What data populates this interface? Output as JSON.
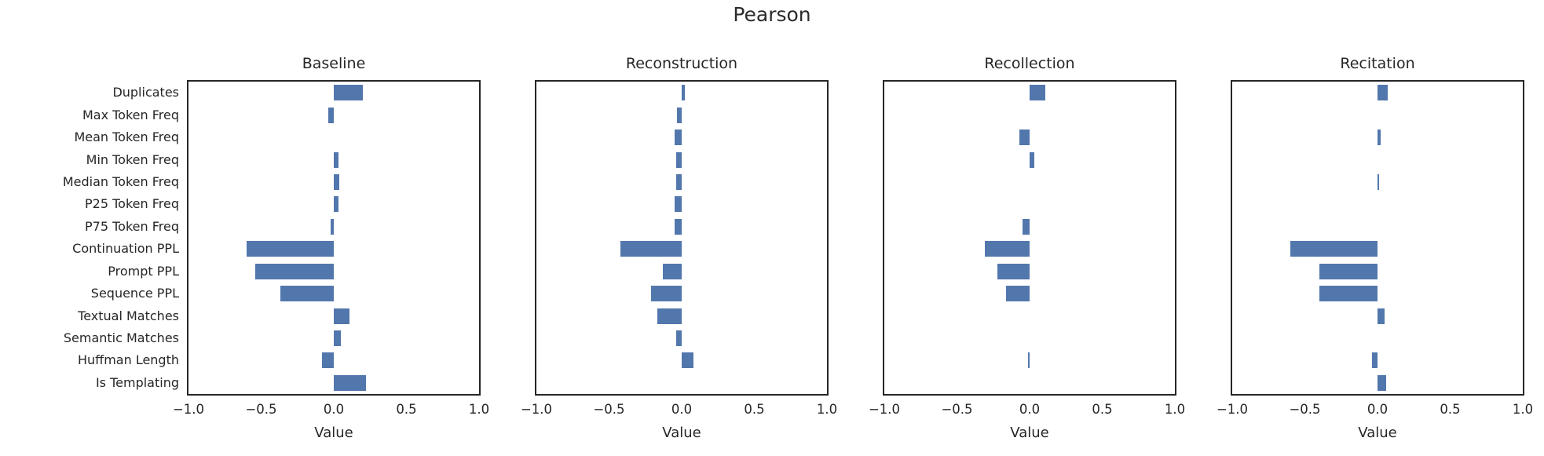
{
  "title": "Pearson",
  "chart_data": {
    "type": "bar",
    "orientation": "horizontal",
    "title": "Pearson",
    "xlabel": "Value",
    "xlim": [
      -1.0,
      1.0
    ],
    "xticks": [
      -1.0,
      -0.5,
      0.0,
      0.5,
      1.0
    ],
    "xtick_labels": [
      "−1.0",
      "−0.5",
      "0.0",
      "0.5",
      "1.0"
    ],
    "grid": false,
    "legend": false,
    "bar_color": "#5277ad",
    "categories": [
      "Duplicates",
      "Max Token Freq",
      "Mean Token Freq",
      "Min Token Freq",
      "Median Token Freq",
      "P25 Token Freq",
      "P75 Token Freq",
      "Continuation PPL",
      "Prompt PPL",
      "Sequence PPL",
      "Textual Matches",
      "Semantic Matches",
      "Huffman Length",
      "Is Templating"
    ],
    "series": [
      {
        "name": "Baseline",
        "values": [
          0.2,
          -0.04,
          0.0,
          0.03,
          0.04,
          0.03,
          -0.02,
          -0.6,
          -0.54,
          -0.37,
          0.11,
          0.05,
          -0.08,
          0.22
        ]
      },
      {
        "name": "Reconstruction",
        "values": [
          0.02,
          -0.03,
          -0.05,
          -0.04,
          -0.04,
          -0.05,
          -0.05,
          -0.42,
          -0.13,
          -0.21,
          -0.17,
          -0.04,
          0.08,
          0.0
        ]
      },
      {
        "name": "Recollection",
        "values": [
          0.11,
          0.0,
          -0.07,
          0.03,
          0.0,
          0.0,
          -0.05,
          -0.31,
          -0.22,
          -0.16,
          0.0,
          0.0,
          -0.01,
          0.0
        ]
      },
      {
        "name": "Recitation",
        "values": [
          0.07,
          0.0,
          0.02,
          0.0,
          0.01,
          0.0,
          0.0,
          -0.6,
          -0.4,
          -0.4,
          0.05,
          0.0,
          -0.04,
          0.06
        ]
      }
    ]
  }
}
